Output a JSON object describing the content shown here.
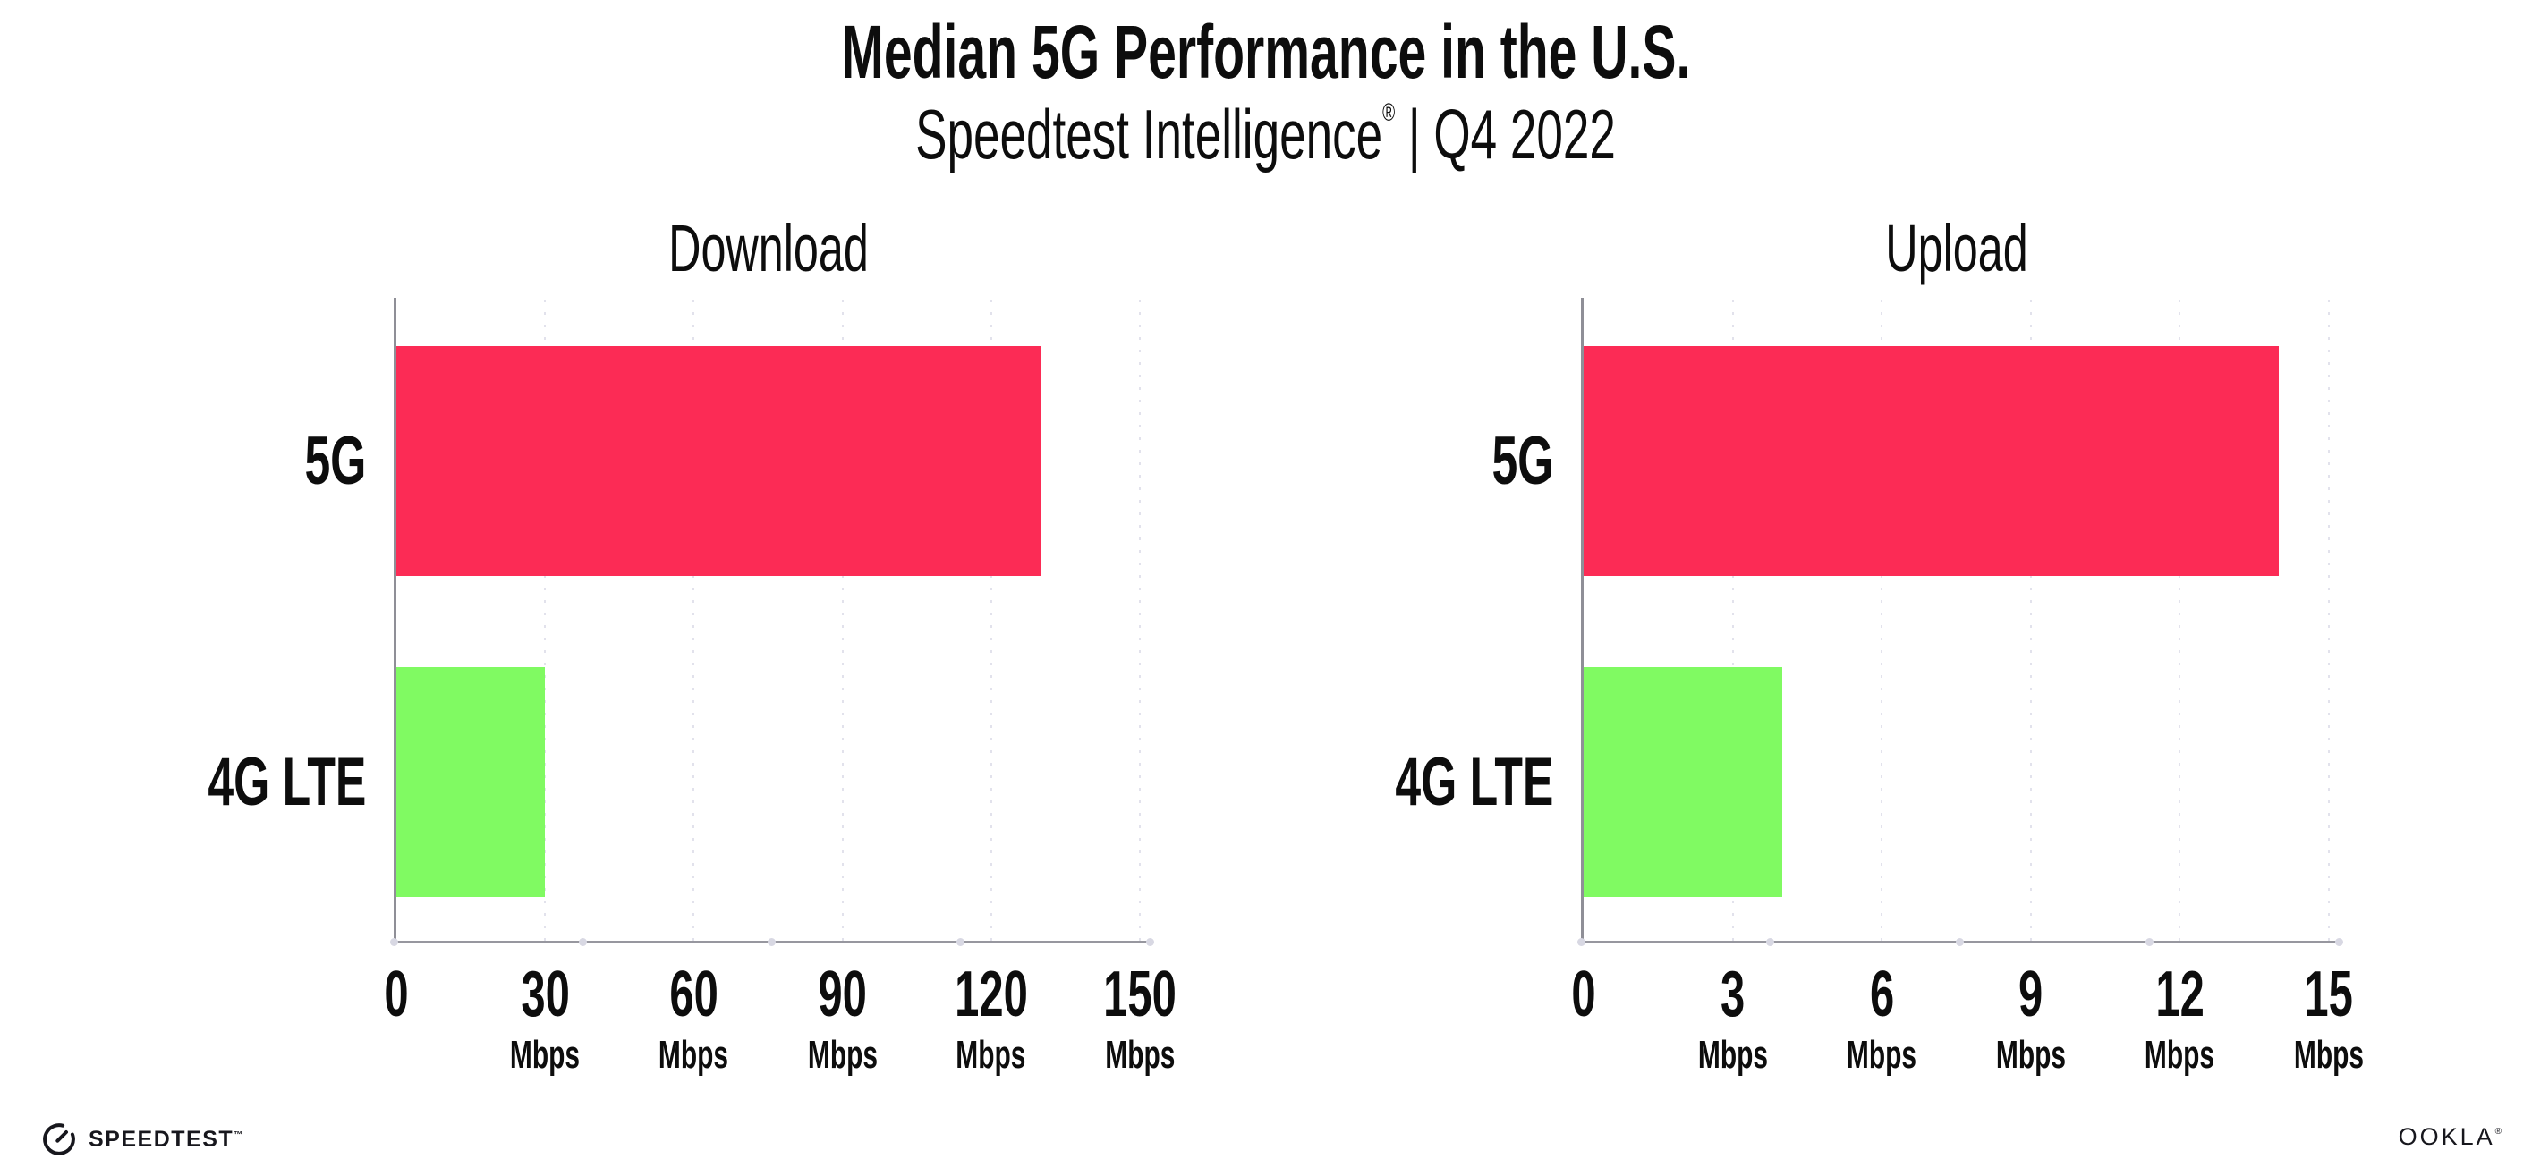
{
  "header": {
    "title": "Median 5G Performance in the U.S.",
    "subtitle_brand": "Speedtest Intelligence",
    "subtitle_reg": "®",
    "subtitle_rest": " | Q4 2022"
  },
  "footer": {
    "speedtest_icon": "gauge-icon",
    "speedtest_label": "SPEEDTEST",
    "speedtest_tm": "™",
    "ookla_label": "OOKLA",
    "ookla_reg": "®"
  },
  "colors": {
    "bar_5g": "#FC2B55",
    "bar_4g": "#80FA62",
    "grid_dot": "#E2E2EC",
    "axis": "#97979F",
    "text": "#0D0D0D"
  },
  "chart_data": [
    {
      "type": "bar",
      "orientation": "horizontal",
      "title": "Download",
      "categories": [
        "5G",
        "4G LTE"
      ],
      "values": [
        130,
        30
      ],
      "unit": "Mbps",
      "xlim": [
        0,
        150
      ],
      "xticks": [
        0,
        30,
        60,
        90,
        120,
        150
      ],
      "tick_unit_label": "Mbps",
      "grid": "dotted-vertical",
      "legend": "none",
      "bar_colors": [
        "#FC2B55",
        "#80FA62"
      ]
    },
    {
      "type": "bar",
      "orientation": "horizontal",
      "title": "Upload",
      "categories": [
        "5G",
        "4G LTE"
      ],
      "values": [
        14,
        4
      ],
      "unit": "Mbps",
      "xlim": [
        0,
        15
      ],
      "xticks": [
        0,
        3,
        6,
        9,
        12,
        15
      ],
      "tick_unit_label": "Mbps",
      "grid": "dotted-vertical",
      "legend": "none",
      "bar_colors": [
        "#FC2B55",
        "#80FA62"
      ]
    }
  ]
}
